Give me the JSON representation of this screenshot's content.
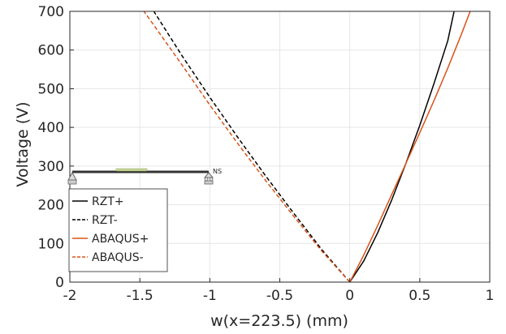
{
  "chart_data": {
    "type": "line",
    "title": "",
    "xlabel": "w(x=223.5) (mm)",
    "ylabel": "Voltage (V)",
    "xlim": [
      -2,
      1
    ],
    "ylim": [
      0,
      700
    ],
    "xticks": [
      "-2",
      "-1.5",
      "-1",
      "-0.5",
      "0",
      "0.5",
      "1"
    ],
    "yticks": [
      "0",
      "100",
      "200",
      "300",
      "400",
      "500",
      "600",
      "700"
    ],
    "grid": true,
    "legend_position": "lower-left",
    "series": [
      {
        "name": "RZT+",
        "color": "#000000",
        "dash": "solid",
        "points": [
          [
            0,
            0
          ],
          [
            0.1,
            55
          ],
          [
            0.2,
            128
          ],
          [
            0.3,
            213
          ],
          [
            0.4,
            306
          ],
          [
            0.5,
            405
          ],
          [
            0.6,
            512
          ],
          [
            0.7,
            624
          ],
          [
            0.745,
            700
          ]
        ]
      },
      {
        "name": "RZT-",
        "color": "#000000",
        "dash": "dashed",
        "points": [
          [
            0,
            0
          ],
          [
            -0.2,
            84
          ],
          [
            -0.4,
            178
          ],
          [
            -0.6,
            274
          ],
          [
            -0.8,
            374
          ],
          [
            -1.0,
            478
          ],
          [
            -1.2,
            586
          ],
          [
            -1.4,
            700
          ]
        ]
      },
      {
        "name": "ABAQUS+",
        "color": "#d95319",
        "dash": "solid",
        "points": [
          [
            0,
            0
          ],
          [
            0.1,
            70
          ],
          [
            0.2,
            147
          ],
          [
            0.3,
            227
          ],
          [
            0.4,
            306
          ],
          [
            0.5,
            386
          ],
          [
            0.6,
            468
          ],
          [
            0.7,
            553
          ],
          [
            0.8,
            643
          ],
          [
            0.86,
            700
          ]
        ]
      },
      {
        "name": "ABAQUS-",
        "color": "#d95319",
        "dash": "dashed",
        "points": [
          [
            0,
            0
          ],
          [
            -0.2,
            80
          ],
          [
            -0.4,
            170
          ],
          [
            -0.6,
            262
          ],
          [
            -0.8,
            358
          ],
          [
            -1.0,
            458
          ],
          [
            -1.2,
            562
          ],
          [
            -1.47,
            700
          ]
        ]
      }
    ],
    "inset_label": "NS"
  }
}
